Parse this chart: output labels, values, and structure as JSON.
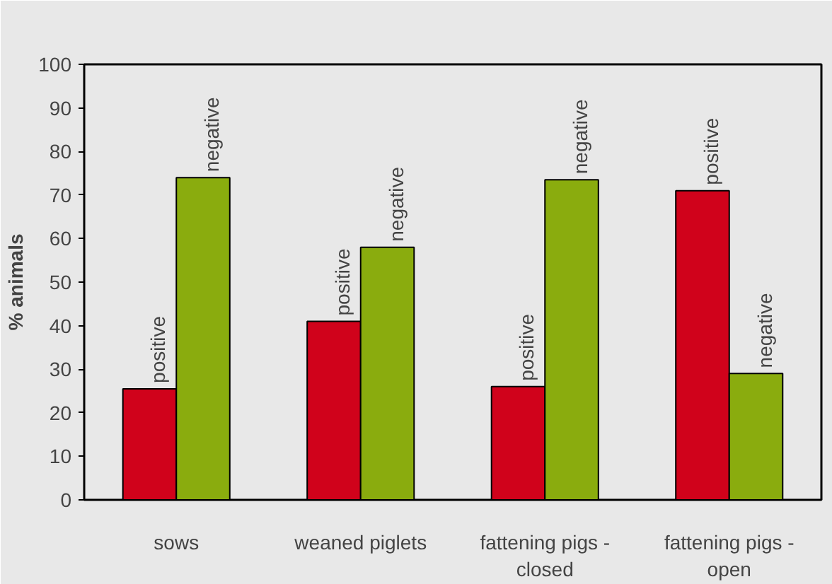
{
  "chart_data": {
    "type": "bar",
    "ylabel": "% animals",
    "categories": [
      "sows",
      "weaned piglets",
      "fattening pigs - closed",
      "fattening pigs - open"
    ],
    "series": [
      {
        "name": "positive",
        "color": "#d0021b",
        "values": [
          25.5,
          41,
          26,
          71
        ]
      },
      {
        "name": "negative",
        "color": "#8aac0e",
        "values": [
          74,
          58,
          73.5,
          29
        ]
      }
    ],
    "ylim": [
      0,
      100
    ],
    "yticks": [
      0,
      10,
      20,
      30,
      40,
      50,
      60,
      70,
      80,
      90,
      100
    ],
    "grid": false
  }
}
